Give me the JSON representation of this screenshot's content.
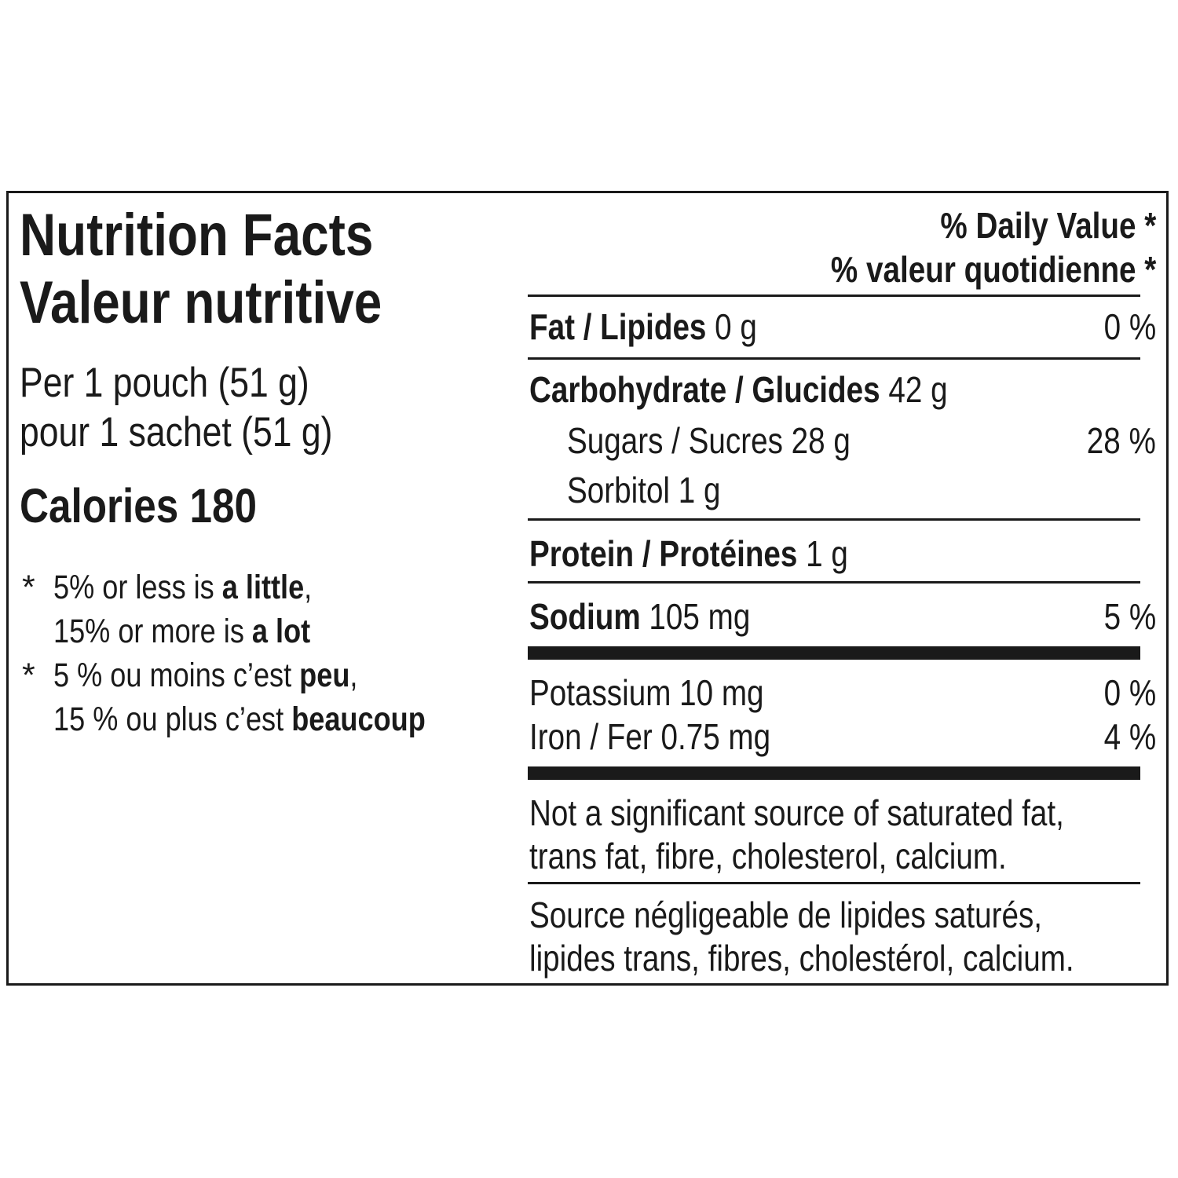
{
  "title": {
    "en": "Nutrition Facts",
    "fr": "Valeur nutritive"
  },
  "serving": {
    "en": "Per 1 pouch (51 g)",
    "fr": "pour 1 sachet (51 g)"
  },
  "calories": "Calories 180",
  "footnote": {
    "star": "*",
    "en_line1_pre": "5% or less is ",
    "en_line1_bold": "a little",
    "en_line1_post": ",",
    "en_line2_pre": "15% or more is ",
    "en_line2_bold": "a lot",
    "fr_line1_pre": "5 % ou moins c’est ",
    "fr_line1_bold": "peu",
    "fr_line1_post": ",",
    "fr_line2_pre": "15 % ou plus c’est ",
    "fr_line2_bold": "beaucoup"
  },
  "daily_value_header": {
    "en": "% Daily Value",
    "fr": "% valeur quotidienne",
    "star": "*"
  },
  "nutrients": {
    "fat": {
      "label": "Fat / Lipides",
      "amount": "0 g",
      "dv": "0 %"
    },
    "carbohydrate": {
      "label": "Carbohydrate / Glucides",
      "amount": "42 g"
    },
    "sugars": {
      "label": "Sugars / Sucres 28 g",
      "dv": "28 %"
    },
    "sorbitol": {
      "label": "Sorbitol 1 g"
    },
    "protein": {
      "label": "Protein / Protéines",
      "amount": "1 g"
    },
    "sodium": {
      "label": "Sodium",
      "amount": "105 mg",
      "dv": "5 %"
    },
    "potassium": {
      "label": "Potassium 10 mg",
      "dv": "0 %"
    },
    "iron": {
      "label": "Iron / Fer 0.75 mg",
      "dv": "4 %"
    }
  },
  "not_significant": {
    "en_line1": "Not a significant source of saturated fat,",
    "en_line2": "trans fat, fibre, cholesterol, calcium.",
    "fr_line1": "Source négligeable de lipides saturés,",
    "fr_line2": "lipides trans, fibres, cholestérol, calcium."
  }
}
